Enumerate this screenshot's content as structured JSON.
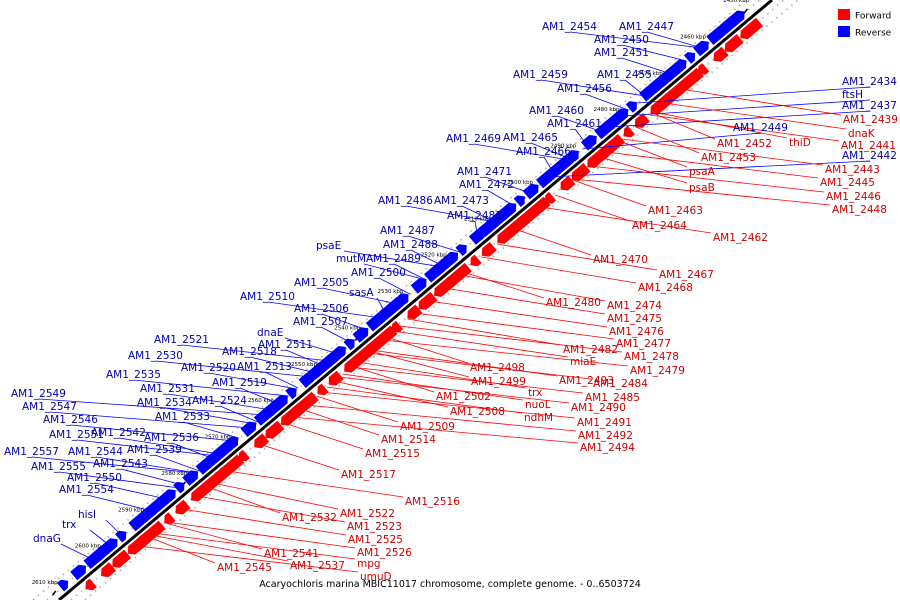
{
  "caption": "Acaryochloris marina MBIC11017 chromosome, complete genome. - 0..6503724",
  "legend": [
    {
      "label": "Forward",
      "color": "#ff0000"
    },
    {
      "label": "Reverse",
      "color": "#0000ff"
    }
  ],
  "colors": {
    "forward": "#ff0000",
    "reverse": "#0000ff",
    "label_forward": "#cc0000",
    "label_reverse": "#0000aa",
    "backbone": "#000000"
  },
  "ticks": [
    "2450 kbp",
    "2460 kbp",
    "2470 kbp",
    "2480 kbp",
    "2490 kbp",
    "2500 kbp",
    "2510 kbp",
    "2520 kbp",
    "2530 kbp",
    "2540 kbp",
    "2550 kbp",
    "2560 kbp",
    "2570 kbp",
    "2580 kbp",
    "2590 kbp",
    "2600 kbp",
    "2610 kbp"
  ],
  "reverse_labels": [
    "AM1_2454",
    "AM1_2447",
    "AM1_2450",
    "AM1_2451",
    "AM1_2459",
    "AM1_2455",
    "AM1_2456",
    "AM1_2460",
    "AM1_2461",
    "AM1_2469",
    "AM1_2465",
    "AM1_2466",
    "AM1_2471",
    "AM1_2472",
    "AM1_2486",
    "AM1_2473",
    "AM1_2481",
    "AM1_2487",
    "AM1_2488",
    "psaE",
    "mutM",
    "AM1_2489",
    "AM1_2500",
    "AM1_2505",
    "sasA",
    "AM1_2510",
    "AM1_2506",
    "AM1_2507",
    "dnaE",
    "AM1_2511",
    "AM1_2521",
    "AM1_2530",
    "AM1_2518",
    "AM1_2520",
    "AM1_2513",
    "AM1_2535",
    "AM1_2519",
    "AM1_2531",
    "AM1_2534",
    "AM1_2524",
    "AM1_2549",
    "AM1_2547",
    "AM1_2533",
    "AM1_2546",
    "AM1_2551",
    "AM1_2542",
    "AM1_2536",
    "AM1_2557",
    "AM1_2544",
    "AM1_2539",
    "AM1_2543",
    "AM1_2555",
    "AM1_2550",
    "AM1_2554",
    "hisI",
    "trx",
    "dnaG",
    "AM1_2434",
    "ftsH",
    "AM1_2437",
    "AM1_2449",
    "AM1_2442"
  ],
  "forward_labels": [
    "AM1_2439",
    "dnaK",
    "thiD",
    "AM1_2441",
    "AM1_2452",
    "AM1_2453",
    "AM1_2443",
    "AM1_2445",
    "AM1_2446",
    "AM1_2448",
    "psaA",
    "psaB",
    "AM1_2463",
    "AM1_2464",
    "AM1_2462",
    "AM1_2470",
    "AM1_2467",
    "AM1_2468",
    "AM1_2480",
    "AM1_2474",
    "AM1_2475",
    "AM1_2476",
    "AM1_2477",
    "AM1_2482",
    "AM1_2478",
    "miaE",
    "AM1_2479",
    "AM1_2498",
    "AM1_2499",
    "AM1_2493",
    "AM1_2484",
    "trx",
    "AM1_2485",
    "AM1_2502",
    "nuoL",
    "AM1_2490",
    "AM1_2508",
    "ndhM",
    "AM1_2491",
    "AM1_2509",
    "AM1_2492",
    "AM1_2514",
    "AM1_2494",
    "AM1_2515",
    "AM1_2517",
    "AM1_2516",
    "AM1_2522",
    "AM1_2532",
    "AM1_2523",
    "AM1_2525",
    "AM1_2541",
    "AM1_2526",
    "AM1_2545",
    "AM1_2537",
    "mpg",
    "umuD"
  ]
}
